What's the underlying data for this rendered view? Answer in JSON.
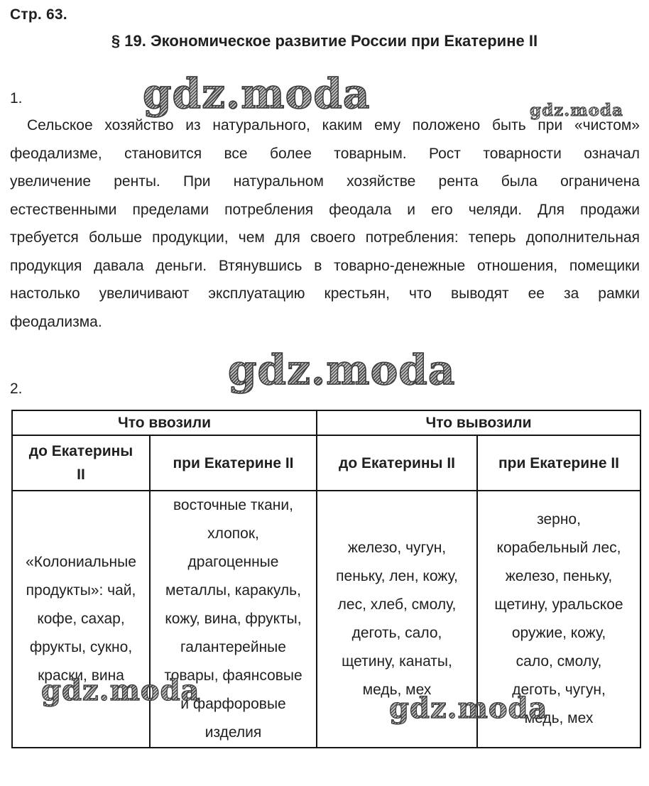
{
  "theme": {
    "background": "#ffffff",
    "text_color": "#1f1f1f",
    "table_border_color": "#141414",
    "watermark_color": "#8e8e8e"
  },
  "page": {
    "page_label": "Стр. 63.",
    "title": "§ 19. Экономическое развитие России при Екатерине II"
  },
  "watermark": {
    "text": "gdz.moda"
  },
  "sections": [
    {
      "number": "1.",
      "paragraph": "Сельское хозяйство из натурального, каким ему положено быть при «чистом»\nфеодализме, становится все более товарным. Рост товарности означал\nувеличение ренты. При натуральном хозяйстве рента была ограничена\nестественными пределами потребления феодала и его челяди. Для продажи\nтребуется больше продукции, чем для своего потребления: теперь дополнительная\nпродукция давала деньги. Втянувшись в товарно-денежные отношения, помещики\nнастолько увеличивают эксплуатацию крестьян, что выводят ее за рамки\nфеодализма."
    },
    {
      "number": "2."
    }
  ],
  "table": {
    "group_headers": [
      "Что ввозили",
      "Что вывозили"
    ],
    "sub_headers": [
      "до Екатерины\nII",
      "при Екатерине II",
      "до Екатерины II",
      "при Екатерине II"
    ],
    "body": [
      "«Колониальные\nпродукты»: чай,\nкофе, сахар,\nфрукты, сукно,\nкраски, вина",
      "восточные ткани,\nхлопок,\nдрагоценные\nметаллы, каракуль,\nкожу, вина, фрукты,\nгалантерейные\nтовары, фаянсовые\nи фарфоровые\nизделия",
      "железо, чугун,\nпеньку, лен, кожу,\nлес, хлеб, смолу,\nдеготь, сало,\nщетину, канаты,\nмедь, мех",
      "зерно,\nкорабельный лес,\nжелезо, пеньку,\nщетину, уральское\nоружие, кожу,\nсало, смолу,\nдеготь, чугун,\nмедь, мех"
    ]
  }
}
